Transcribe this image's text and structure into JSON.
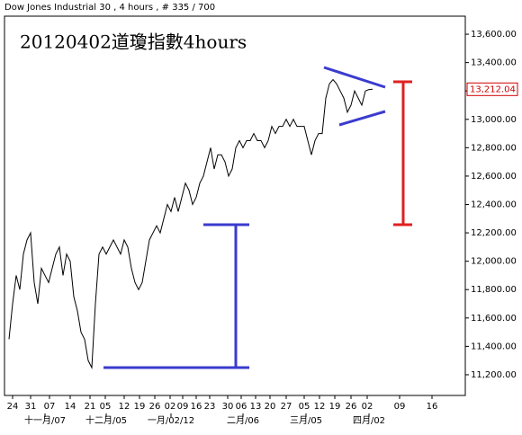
{
  "chart_data": {
    "type": "line",
    "header": "Dow Jones Industrial 30 , 4 hours , # 335 / 700",
    "title": "20120402道瓊指數4hours",
    "series": [
      {
        "name": "Dow Jones Industrial 30",
        "color": "#000000",
        "x": [
          5,
          9,
          13,
          17,
          21,
          25,
          29,
          33,
          37,
          41,
          45,
          49,
          53,
          57,
          61,
          65,
          69,
          73,
          77,
          81,
          85,
          89,
          93,
          97,
          101,
          105,
          109,
          113,
          117,
          121,
          125,
          129,
          133,
          137,
          141,
          145,
          149,
          153,
          157,
          161,
          165,
          169,
          173,
          177,
          181,
          185,
          189,
          193,
          197,
          201,
          205,
          209,
          213,
          217,
          221,
          225,
          229,
          233,
          237,
          241,
          245,
          249,
          253,
          257,
          261,
          265,
          269,
          273,
          277,
          281,
          285,
          289,
          293,
          297,
          301,
          305,
          309,
          313,
          317,
          321,
          325,
          329,
          333,
          337,
          341,
          345,
          349,
          353,
          357,
          361,
          365,
          369,
          373,
          377,
          381,
          385,
          389,
          393,
          397,
          401,
          405,
          409
        ],
        "values": [
          11450,
          11700,
          11900,
          11800,
          12050,
          12150,
          12200,
          11850,
          11700,
          11950,
          11900,
          11850,
          11950,
          12050,
          12100,
          11900,
          12050,
          12000,
          11750,
          11650,
          11500,
          11450,
          11300,
          11250,
          11700,
          12050,
          12100,
          12050,
          12100,
          12150,
          12100,
          12050,
          12150,
          12100,
          11950,
          11850,
          11800,
          11850,
          12000,
          12150,
          12200,
          12250,
          12200,
          12300,
          12400,
          12350,
          12450,
          12350,
          12450,
          12550,
          12500,
          12400,
          12450,
          12550,
          12600,
          12700,
          12800,
          12650,
          12750,
          12750,
          12700,
          12600,
          12650,
          12800,
          12850,
          12800,
          12850,
          12850,
          12900,
          12850,
          12850,
          12800,
          12850,
          12950,
          12900,
          12950,
          12950,
          13000,
          12950,
          13000,
          12950,
          12950,
          12950,
          12850,
          12750,
          12850,
          12900,
          12900,
          13150,
          13250,
          13280,
          13250,
          13200,
          13150,
          13050,
          13100,
          13200,
          13150,
          13100,
          13200,
          13210,
          13212
        ]
      }
    ],
    "last_price": {
      "value": 13212.04,
      "label": "13,212.04"
    },
    "xlim": [
      0,
      512
    ],
    "ylim": [
      11054,
      13727
    ],
    "xticks": [
      {
        "value": 9,
        "label": "24"
      },
      {
        "value": 29,
        "label": "31"
      },
      {
        "value": 50,
        "label": "07"
      },
      {
        "value": 73,
        "label": "14"
      },
      {
        "value": 95,
        "label": "21"
      },
      {
        "value": 112,
        "label": "05"
      },
      {
        "value": 133,
        "label": "12"
      },
      {
        "value": 150,
        "label": "19"
      },
      {
        "value": 167,
        "label": "26"
      },
      {
        "value": 184,
        "label": "02"
      },
      {
        "value": 198,
        "label": "09"
      },
      {
        "value": 213,
        "label": "16"
      },
      {
        "value": 228,
        "label": "23"
      },
      {
        "value": 248,
        "label": "30"
      },
      {
        "value": 263,
        "label": "06"
      },
      {
        "value": 279,
        "label": "13"
      },
      {
        "value": 295,
        "label": "20"
      },
      {
        "value": 313,
        "label": "27"
      },
      {
        "value": 333,
        "label": "05"
      },
      {
        "value": 350,
        "label": "12"
      },
      {
        "value": 367,
        "label": "19"
      },
      {
        "value": 385,
        "label": "26"
      },
      {
        "value": 403,
        "label": "02"
      },
      {
        "value": 439,
        "label": "09"
      },
      {
        "value": 475,
        "label": "16"
      }
    ],
    "month_ticks": [
      {
        "value": 45,
        "label": "十一月/07"
      },
      {
        "value": 113,
        "label": "十二月/05"
      },
      {
        "value": 185,
        "label": "一月/02/12"
      },
      {
        "value": 265,
        "label": "二月/06"
      },
      {
        "value": 335,
        "label": "三月/05"
      },
      {
        "value": 405,
        "label": "四月/02"
      }
    ],
    "yticks": [
      {
        "value": 11200,
        "label": "11,200.00"
      },
      {
        "value": 11400,
        "label": "11,400.00"
      },
      {
        "value": 11600,
        "label": "11,600.00"
      },
      {
        "value": 11800,
        "label": "11,800.00"
      },
      {
        "value": 12000,
        "label": "12,000.00"
      },
      {
        "value": 12200,
        "label": "12,200.00"
      },
      {
        "value": 12400,
        "label": "12,400.00"
      },
      {
        "value": 12600,
        "label": "12,600.00"
      },
      {
        "value": 12800,
        "label": "12,800.00"
      },
      {
        "value": 13000,
        "label": "13,000.00"
      },
      {
        "value": 13200,
        "label": "13,200.00"
      },
      {
        "value": 13400,
        "label": "13,400.00"
      },
      {
        "value": 13600,
        "label": "13,600.00"
      }
    ]
  }
}
